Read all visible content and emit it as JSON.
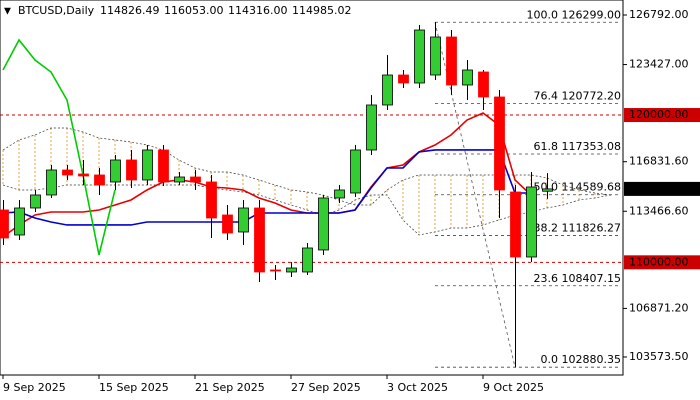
{
  "chart_data": {
    "type": "candlestick",
    "symbol": "BTCUSD,Daily",
    "header_values": [
      "114826.49",
      "116053.00",
      "114316.00",
      "114985.02"
    ],
    "categories": [
      "9 Sep 2025",
      null,
      null,
      null,
      null,
      null,
      "15 Sep 2025",
      null,
      null,
      null,
      null,
      null,
      "21 Sep 2025",
      null,
      null,
      null,
      null,
      null,
      "27 Sep 2025",
      null,
      null,
      null,
      null,
      null,
      "3 Oct 2025",
      null,
      null,
      null,
      null,
      null,
      "9 Oct 2025",
      null,
      null,
      null,
      null,
      null,
      null,
      null,
      null
    ],
    "candles": [
      {
        "open": 113553,
        "high": 114232,
        "low": 111177,
        "close": 111651
      },
      {
        "open": 111855,
        "high": 114232,
        "low": 111516,
        "close": 113689
      },
      {
        "open": 113689,
        "high": 114911,
        "low": 113417,
        "close": 114572
      },
      {
        "open": 114572,
        "high": 116608,
        "low": 114368,
        "close": 116268
      },
      {
        "open": 116268,
        "high": 116608,
        "low": 115590,
        "close": 115929
      },
      {
        "open": 115997,
        "high": 116948,
        "low": 115250,
        "close": 115861
      },
      {
        "open": 115929,
        "high": 116404,
        "low": 114572,
        "close": 115250
      },
      {
        "open": 115454,
        "high": 117287,
        "low": 114911,
        "close": 116948
      },
      {
        "open": 116948,
        "high": 117627,
        "low": 115047,
        "close": 115590
      },
      {
        "open": 115590,
        "high": 117966,
        "low": 115250,
        "close": 117627
      },
      {
        "open": 117627,
        "high": 117966,
        "low": 115182,
        "close": 115454
      },
      {
        "open": 115454,
        "high": 116133,
        "low": 115250,
        "close": 115793
      },
      {
        "open": 115793,
        "high": 116268,
        "low": 114911,
        "close": 115454
      },
      {
        "open": 115454,
        "high": 115929,
        "low": 111651,
        "close": 113010
      },
      {
        "open": 113214,
        "high": 113892,
        "low": 111516,
        "close": 111991
      },
      {
        "open": 112059,
        "high": 114232,
        "low": 111177,
        "close": 113689
      },
      {
        "open": 113689,
        "high": 114232,
        "low": 108665,
        "close": 109344
      },
      {
        "open": 109480,
        "high": 109819,
        "low": 108801,
        "close": 109412
      },
      {
        "open": 109344,
        "high": 110023,
        "low": 109004,
        "close": 109615
      },
      {
        "open": 109344,
        "high": 111312,
        "low": 109140,
        "close": 110973
      },
      {
        "open": 110838,
        "high": 114572,
        "low": 110498,
        "close": 114368
      },
      {
        "open": 114368,
        "high": 115250,
        "low": 114028,
        "close": 114911
      },
      {
        "open": 114707,
        "high": 117966,
        "low": 114436,
        "close": 117627
      },
      {
        "open": 117627,
        "high": 121360,
        "low": 117287,
        "close": 120682
      },
      {
        "open": 120682,
        "high": 124076,
        "low": 120342,
        "close": 122718
      },
      {
        "open": 122718,
        "high": 123058,
        "low": 121836,
        "close": 122175
      },
      {
        "open": 122175,
        "high": 126113,
        "low": 121836,
        "close": 125773
      },
      {
        "open": 122718,
        "high": 126299,
        "low": 122379,
        "close": 125298
      },
      {
        "open": 125298,
        "high": 125773,
        "low": 121360,
        "close": 122039
      },
      {
        "open": 122039,
        "high": 123737,
        "low": 121021,
        "close": 123058
      },
      {
        "open": 122922,
        "high": 123058,
        "low": 120342,
        "close": 121225
      },
      {
        "open": 121225,
        "high": 121700,
        "low": 113010,
        "close": 114911
      },
      {
        "open": 114775,
        "high": 115250,
        "low": 102880.35,
        "close": 110362
      },
      {
        "open": 110362,
        "high": 116133,
        "low": 110023,
        "close": 115114
      },
      {
        "open": 114826.49,
        "high": 116053,
        "low": 114316,
        "close": 114985.02
      }
    ],
    "colors": {
      "up": "#33cc33",
      "down": "#ff0000"
    },
    "series": [
      {
        "color": "#e60000",
        "values": [
          111720,
          112535,
          113214,
          113417,
          113417,
          113417,
          113553,
          113892,
          114232,
          114911,
          115454,
          115590,
          115454,
          115114,
          115047,
          114911,
          114368,
          114028,
          113553,
          113349,
          113349,
          113349,
          113553,
          115114,
          116404,
          116608,
          117491,
          117966,
          118645,
          119663,
          120138,
          119324,
          115590,
          114572,
          null,
          null,
          null,
          null,
          null
        ]
      },
      {
        "color": "#0000cc",
        "values": [
          113349,
          113417,
          113010,
          112738,
          112535,
          112535,
          112535,
          112535,
          112535,
          112738,
          112738,
          112738,
          112738,
          112738,
          112738,
          112738,
          113349,
          113349,
          113349,
          113349,
          113349,
          113349,
          113553,
          115047,
          116404,
          116404,
          117491,
          117627,
          117627,
          117627,
          117627,
          117627,
          114707,
          114707,
          null,
          null,
          null,
          null,
          null
        ]
      },
      {
        "color": "#00cc00",
        "values": [
          123058,
          125094,
          123737,
          122922,
          121021,
          115929,
          110498,
          114911,
          null,
          null,
          null,
          null,
          null,
          null,
          null,
          null,
          null,
          null,
          null,
          null,
          null,
          null,
          null,
          null,
          null,
          null,
          null,
          null,
          null,
          null,
          null,
          null,
          null,
          null,
          null,
          null,
          null,
          null,
          null
        ]
      }
    ],
    "cloud": {
      "color": "#e8a040",
      "span_a": [
        117627,
        118305,
        118645,
        119120,
        119120,
        118849,
        118441,
        118305,
        118170,
        117966,
        117627,
        116948,
        116404,
        116133,
        116133,
        115929,
        115590,
        115250,
        114911,
        114775,
        114572,
        114232,
        113892,
        113892,
        114911,
        115590,
        115929,
        115929,
        115929,
        115929,
        115929,
        115929,
        115929,
        115929,
        115726,
        115250,
        114911,
        114707,
        114572
      ],
      "span_b": [
        115250,
        114911,
        114911,
        115047,
        115250,
        115250,
        115250,
        115250,
        115250,
        115250,
        115250,
        115250,
        115250,
        115047,
        114911,
        114775,
        114572,
        114232,
        113892,
        113553,
        113214,
        113553,
        114232,
        114572,
        114572,
        112874,
        111855,
        112059,
        112331,
        112331,
        112535,
        112874,
        113214,
        113417,
        113689,
        113892,
        114232,
        114368,
        114572
      ]
    },
    "fib": [
      {
        "value": 126299,
        "label": "100.0 126299.00"
      },
      {
        "value": 120772.2,
        "label": "76.4 120772.20"
      },
      {
        "value": 117353.08,
        "label": "61.8 117353.08"
      },
      {
        "value": 114589.68,
        "label": "50.0 114589.68"
      },
      {
        "value": 111826.27,
        "label": "38.2 111826.27"
      },
      {
        "value": 108407.15,
        "label": "23.6 108407.15"
      },
      {
        "value": 102880.35,
        "label": "0.0 102880.35"
      }
    ],
    "levels": [
      {
        "value": 120000,
        "label": "120000.00"
      },
      {
        "value": 110000,
        "label": "110000.00"
      }
    ],
    "level_color": "#cc0000",
    "current_price": 114985.02,
    "ylim": [
      102350,
      127810
    ],
    "yticks": [
      {
        "value": 126792,
        "label": "126792.00"
      },
      {
        "value": 123427,
        "label": "123427.00"
      },
      {
        "value": 116831.6,
        "label": "116831.60"
      },
      {
        "value": 113466.6,
        "label": "113466.60"
      },
      {
        "value": 106871.2,
        "label": "106871.20"
      },
      {
        "value": 103573.5,
        "label": "103573.50"
      }
    ]
  }
}
